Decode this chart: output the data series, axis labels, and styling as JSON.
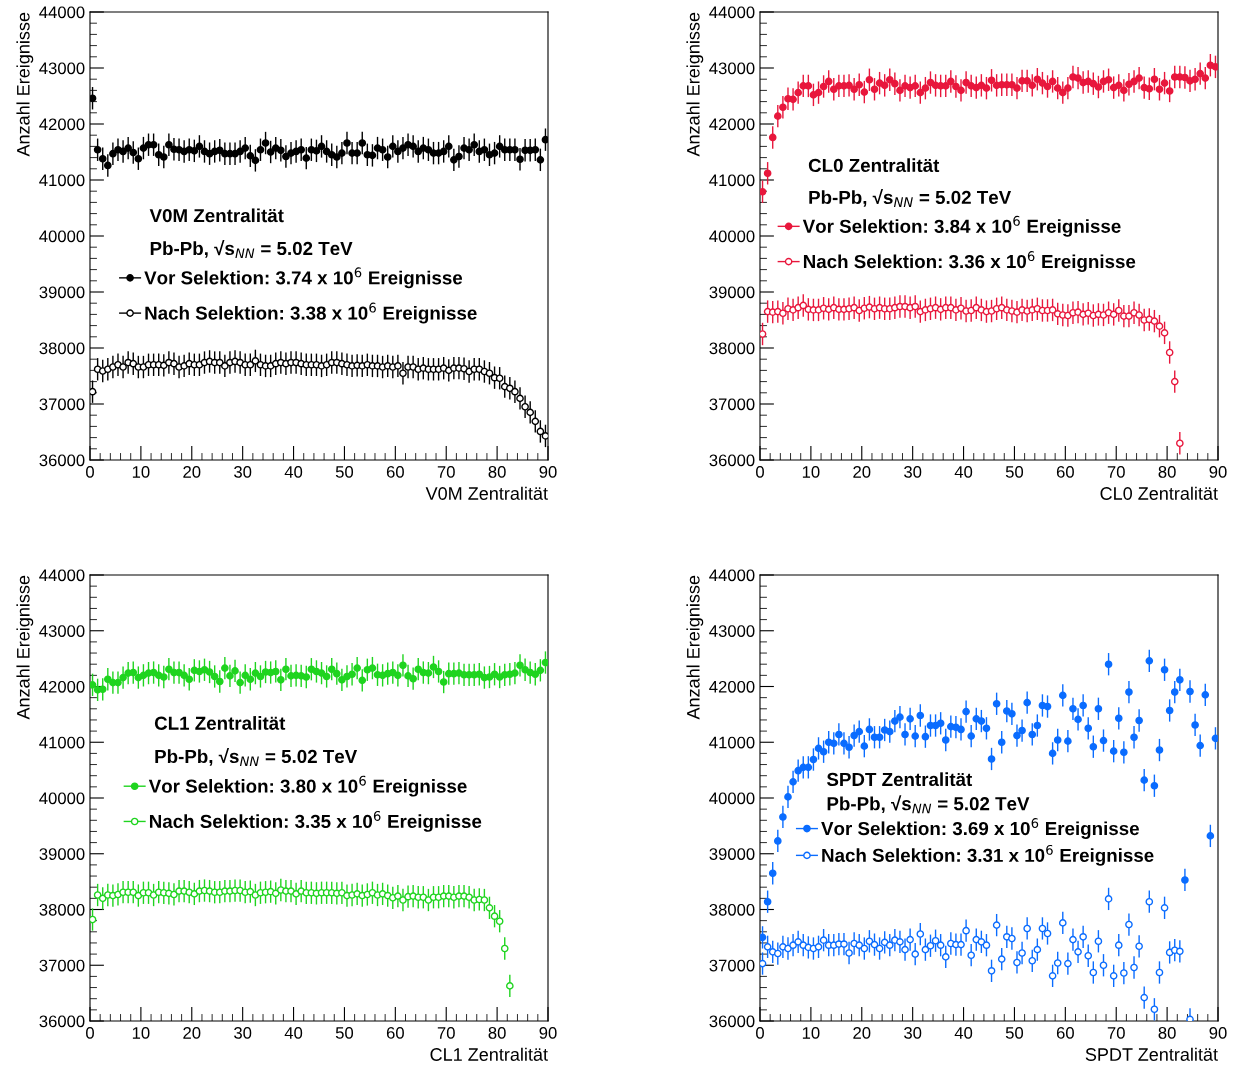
{
  "chart_data": [
    {
      "type": "scatter",
      "xlabel": "V0M Zentralität",
      "ylabel": "Anzahl Ereignisse",
      "legend_title": "V0M Zentralität",
      "annotations": [
        "Pb-Pb, √s$_{NN}$ = 5.02 TeV"
      ],
      "legend": "left",
      "grid": false,
      "marker": "circle",
      "xlim": [
        0,
        90
      ],
      "ylim": [
        36000,
        44000
      ],
      "xticks": [
        0,
        10,
        20,
        30,
        40,
        50,
        60,
        70,
        80,
        90
      ],
      "yticks": [
        36000,
        37000,
        38000,
        39000,
        40000,
        41000,
        42000,
        43000,
        44000
      ],
      "x": [
        0.5,
        1.5,
        2.5,
        3.5,
        4.5,
        5.5,
        6.5,
        7.5,
        8.5,
        9.5,
        10.5,
        11.5,
        12.5,
        13.5,
        14.5,
        15.5,
        16.5,
        17.5,
        18.5,
        19.5,
        20.5,
        21.5,
        22.5,
        23.5,
        24.5,
        25.5,
        26.5,
        27.5,
        28.5,
        29.5,
        30.5,
        31.5,
        32.5,
        33.5,
        34.5,
        35.5,
        36.5,
        37.5,
        38.5,
        39.5,
        40.5,
        41.5,
        42.5,
        43.5,
        44.5,
        45.5,
        46.5,
        47.5,
        48.5,
        49.5,
        50.5,
        51.5,
        52.5,
        53.5,
        54.5,
        55.5,
        56.5,
        57.5,
        58.5,
        59.5,
        60.5,
        61.5,
        62.5,
        63.5,
        64.5,
        65.5,
        66.5,
        67.5,
        68.5,
        69.5,
        70.5,
        71.5,
        72.5,
        73.5,
        74.5,
        75.5,
        76.5,
        77.5,
        78.5,
        79.5,
        80.5,
        81.5,
        82.5,
        83.5,
        84.5,
        85.5,
        86.5,
        87.5,
        88.5,
        89.5
      ],
      "series": [
        {
          "name": "Vor Selektion: 3.74 x 10$^{6}$ Ereignisse",
          "color": "#000000",
          "values": [
            42460,
            41540,
            41380,
            41260,
            41470,
            41540,
            41510,
            41570,
            41490,
            41380,
            41570,
            41630,
            41630,
            41450,
            41410,
            41630,
            41550,
            41540,
            41510,
            41540,
            41520,
            41600,
            41510,
            41470,
            41510,
            41530,
            41470,
            41470,
            41470,
            41510,
            41570,
            41430,
            41350,
            41540,
            41660,
            41500,
            41570,
            41530,
            41420,
            41480,
            41510,
            41540,
            41390,
            41540,
            41520,
            41600,
            41510,
            41450,
            41410,
            41480,
            41660,
            41480,
            41480,
            41660,
            41450,
            41440,
            41570,
            41540,
            41410,
            41600,
            41510,
            41570,
            41630,
            41600,
            41510,
            41570,
            41540,
            41480,
            41480,
            41510,
            41600,
            41360,
            41420,
            41570,
            41540,
            41630,
            41510,
            41540,
            41450,
            41480,
            41600,
            41540,
            41540,
            41540,
            41370,
            41530,
            41530,
            41540,
            41360,
            41720
          ],
          "errors": [
            200,
            200,
            200,
            200,
            200,
            200,
            200,
            200,
            200,
            200,
            200,
            200,
            200,
            200,
            200,
            200,
            200,
            200,
            200,
            200,
            200,
            200,
            200,
            200,
            200,
            200,
            200,
            200,
            200,
            200,
            200,
            200,
            200,
            200,
            200,
            200,
            200,
            200,
            200,
            200,
            200,
            200,
            200,
            200,
            200,
            200,
            200,
            200,
            200,
            200,
            200,
            200,
            200,
            200,
            200,
            200,
            200,
            200,
            200,
            200,
            200,
            200,
            200,
            200,
            200,
            200,
            200,
            200,
            200,
            200,
            200,
            200,
            200,
            200,
            200,
            200,
            200,
            200,
            200,
            200,
            200,
            200,
            200,
            200,
            200,
            200,
            200,
            200,
            200,
            200
          ]
        },
        {
          "name": "Nach Selektion: 3.38 x 10$^{6}$ Ereignisse",
          "color": "#000000",
          "values": [
            37220,
            37620,
            37590,
            37620,
            37660,
            37700,
            37660,
            37740,
            37720,
            37660,
            37660,
            37700,
            37700,
            37700,
            37690,
            37740,
            37720,
            37660,
            37680,
            37720,
            37700,
            37700,
            37740,
            37760,
            37740,
            37740,
            37680,
            37740,
            37760,
            37740,
            37700,
            37700,
            37770,
            37700,
            37680,
            37680,
            37720,
            37740,
            37720,
            37740,
            37740,
            37720,
            37700,
            37700,
            37700,
            37680,
            37700,
            37740,
            37740,
            37720,
            37700,
            37680,
            37690,
            37680,
            37700,
            37680,
            37680,
            37660,
            37680,
            37660,
            37680,
            37550,
            37660,
            37660,
            37620,
            37640,
            37620,
            37620,
            37620,
            37640,
            37600,
            37640,
            37640,
            37630,
            37580,
            37620,
            37620,
            37580,
            37550,
            37470,
            37460,
            37310,
            37280,
            37220,
            37100,
            36950,
            36850,
            36690,
            36510,
            36430
          ],
          "errors": [
            200,
            200,
            200,
            200,
            200,
            200,
            200,
            200,
            200,
            200,
            200,
            200,
            200,
            200,
            200,
            200,
            200,
            200,
            200,
            200,
            200,
            200,
            200,
            200,
            200,
            200,
            200,
            200,
            200,
            200,
            200,
            200,
            200,
            200,
            200,
            200,
            200,
            200,
            200,
            200,
            200,
            200,
            200,
            200,
            200,
            200,
            200,
            200,
            200,
            200,
            200,
            200,
            200,
            200,
            200,
            200,
            200,
            200,
            200,
            200,
            200,
            200,
            200,
            200,
            200,
            200,
            200,
            200,
            200,
            200,
            200,
            200,
            200,
            200,
            200,
            200,
            200,
            200,
            200,
            200,
            200,
            200,
            200,
            200,
            200,
            200,
            200,
            200,
            200,
            200
          ]
        }
      ]
    },
    {
      "type": "scatter",
      "xlabel": "CL0 Zentralität",
      "ylabel": "Anzahl Ereignisse",
      "legend_title": "CL0 Zentralität",
      "annotations": [
        "Pb-Pb, √s$_{NN}$ = 5.02 TeV"
      ],
      "legend": "left",
      "grid": false,
      "marker": "circle",
      "xlim": [
        0,
        90
      ],
      "ylim": [
        36000,
        44000
      ],
      "xticks": [
        0,
        10,
        20,
        30,
        40,
        50,
        60,
        70,
        80,
        90
      ],
      "yticks": [
        36000,
        37000,
        38000,
        39000,
        40000,
        41000,
        42000,
        43000,
        44000
      ],
      "x": [
        0.5,
        1.5,
        2.5,
        3.5,
        4.5,
        5.5,
        6.5,
        7.5,
        8.5,
        9.5,
        10.5,
        11.5,
        12.5,
        13.5,
        14.5,
        15.5,
        16.5,
        17.5,
        18.5,
        19.5,
        20.5,
        21.5,
        22.5,
        23.5,
        24.5,
        25.5,
        26.5,
        27.5,
        28.5,
        29.5,
        30.5,
        31.5,
        32.5,
        33.5,
        34.5,
        35.5,
        36.5,
        37.5,
        38.5,
        39.5,
        40.5,
        41.5,
        42.5,
        43.5,
        44.5,
        45.5,
        46.5,
        47.5,
        48.5,
        49.5,
        50.5,
        51.5,
        52.5,
        53.5,
        54.5,
        55.5,
        56.5,
        57.5,
        58.5,
        59.5,
        60.5,
        61.5,
        62.5,
        63.5,
        64.5,
        65.5,
        66.5,
        67.5,
        68.5,
        69.5,
        70.5,
        71.5,
        72.5,
        73.5,
        74.5,
        75.5,
        76.5,
        77.5,
        78.5,
        79.5,
        80.5,
        81.5,
        82.5,
        83.5,
        84.5,
        85.5,
        86.5,
        87.5,
        88.5,
        89.5
      ],
      "series": [
        {
          "name": "Vor Selektion: 3.84 x 10$^{6}$ Ereignisse",
          "color": "#e8173c",
          "values": [
            40790,
            41120,
            41760,
            42140,
            42300,
            42450,
            42440,
            42560,
            42680,
            42680,
            42520,
            42560,
            42670,
            42760,
            42620,
            42680,
            42680,
            42690,
            42620,
            42700,
            42570,
            42790,
            42620,
            42730,
            42690,
            42790,
            42720,
            42600,
            42680,
            42650,
            42680,
            42560,
            42640,
            42740,
            42690,
            42680,
            42680,
            42760,
            42670,
            42600,
            42740,
            42680,
            42650,
            42690,
            42640,
            42780,
            42690,
            42700,
            42700,
            42700,
            42640,
            42770,
            42770,
            42690,
            42800,
            42730,
            42670,
            42760,
            42640,
            42560,
            42640,
            42840,
            42820,
            42740,
            42760,
            42720,
            42660,
            42760,
            42790,
            42650,
            42690,
            42600,
            42710,
            42760,
            42820,
            42650,
            42630,
            42800,
            42620,
            42730,
            42590,
            42840,
            42840,
            42830,
            42770,
            42800,
            42900,
            42820,
            43050,
            43020
          ],
          "errors": [
            200,
            200,
            200,
            200,
            200,
            200,
            200,
            200,
            200,
            200,
            200,
            200,
            200,
            200,
            200,
            200,
            200,
            200,
            200,
            200,
            200,
            200,
            200,
            200,
            200,
            200,
            200,
            200,
            200,
            200,
            200,
            200,
            200,
            200,
            200,
            200,
            200,
            200,
            200,
            200,
            200,
            200,
            200,
            200,
            200,
            200,
            200,
            200,
            200,
            200,
            200,
            200,
            200,
            200,
            200,
            200,
            200,
            200,
            200,
            200,
            200,
            200,
            200,
            200,
            200,
            200,
            200,
            200,
            200,
            200,
            200,
            200,
            200,
            200,
            200,
            200,
            200,
            200,
            200,
            200,
            200,
            200,
            200,
            200,
            200,
            200,
            200,
            200,
            200,
            200
          ]
        },
        {
          "name": "Nach Selektion: 3.36 x 10$^{6}$ Ereignisse",
          "color": "#e8173c",
          "values": [
            38250,
            38650,
            38640,
            38650,
            38620,
            38700,
            38680,
            38720,
            38760,
            38690,
            38680,
            38680,
            38710,
            38690,
            38720,
            38690,
            38690,
            38700,
            38720,
            38670,
            38710,
            38730,
            38700,
            38720,
            38700,
            38700,
            38720,
            38740,
            38740,
            38720,
            38740,
            38650,
            38680,
            38700,
            38720,
            38690,
            38720,
            38720,
            38680,
            38710,
            38660,
            38670,
            38720,
            38680,
            38650,
            38660,
            38700,
            38720,
            38680,
            38660,
            38640,
            38680,
            38660,
            38680,
            38700,
            38670,
            38670,
            38680,
            38610,
            38590,
            38580,
            38630,
            38640,
            38600,
            38620,
            38580,
            38600,
            38590,
            38630,
            38600,
            38670,
            38570,
            38570,
            38630,
            38590,
            38500,
            38510,
            38480,
            38390,
            38270,
            37920,
            37400,
            36300,
            null,
            null,
            null,
            null,
            null,
            null,
            null
          ],
          "errors": [
            200,
            200,
            200,
            200,
            200,
            200,
            200,
            200,
            200,
            200,
            200,
            200,
            200,
            200,
            200,
            200,
            200,
            200,
            200,
            200,
            200,
            200,
            200,
            200,
            200,
            200,
            200,
            200,
            200,
            200,
            200,
            200,
            200,
            200,
            200,
            200,
            200,
            200,
            200,
            200,
            200,
            200,
            200,
            200,
            200,
            200,
            200,
            200,
            200,
            200,
            200,
            200,
            200,
            200,
            200,
            200,
            200,
            200,
            200,
            200,
            200,
            200,
            200,
            200,
            200,
            200,
            200,
            200,
            200,
            200,
            200,
            200,
            200,
            200,
            200,
            200,
            200,
            200,
            200,
            200,
            200,
            200,
            200,
            null,
            null,
            null,
            null,
            null,
            null,
            null
          ]
        }
      ]
    },
    {
      "type": "scatter",
      "xlabel": "CL1 Zentralität",
      "ylabel": "Anzahl Ereignisse",
      "legend_title": "CL1 Zentralität",
      "annotations": [
        "Pb-Pb, √s$_{NN}$ = 5.02 TeV"
      ],
      "legend": "left",
      "grid": false,
      "marker": "circle",
      "xlim": [
        0,
        90
      ],
      "ylim": [
        36000,
        44000
      ],
      "xticks": [
        0,
        10,
        20,
        30,
        40,
        50,
        60,
        70,
        80,
        90
      ],
      "yticks": [
        36000,
        37000,
        38000,
        39000,
        40000,
        41000,
        42000,
        43000,
        44000
      ],
      "x": [
        0.5,
        1.5,
        2.5,
        3.5,
        4.5,
        5.5,
        6.5,
        7.5,
        8.5,
        9.5,
        10.5,
        11.5,
        12.5,
        13.5,
        14.5,
        15.5,
        16.5,
        17.5,
        18.5,
        19.5,
        20.5,
        21.5,
        22.5,
        23.5,
        24.5,
        25.5,
        26.5,
        27.5,
        28.5,
        29.5,
        30.5,
        31.5,
        32.5,
        33.5,
        34.5,
        35.5,
        36.5,
        37.5,
        38.5,
        39.5,
        40.5,
        41.5,
        42.5,
        43.5,
        44.5,
        45.5,
        46.5,
        47.5,
        48.5,
        49.5,
        50.5,
        51.5,
        52.5,
        53.5,
        54.5,
        55.5,
        56.5,
        57.5,
        58.5,
        59.5,
        60.5,
        61.5,
        62.5,
        63.5,
        64.5,
        65.5,
        66.5,
        67.5,
        68.5,
        69.5,
        70.5,
        71.5,
        72.5,
        73.5,
        74.5,
        75.5,
        76.5,
        77.5,
        78.5,
        79.5,
        80.5,
        81.5,
        82.5,
        83.5,
        84.5,
        85.5,
        86.5,
        87.5,
        88.5,
        89.5
      ],
      "series": [
        {
          "name": "Vor Selektion: 3.80 x 10$^{6}$ Ereignisse",
          "color": "#1fd41f",
          "values": [
            42030,
            41940,
            41950,
            42130,
            42070,
            42070,
            42160,
            42240,
            42250,
            42160,
            42200,
            42240,
            42250,
            42200,
            42170,
            42310,
            42250,
            42250,
            42200,
            42130,
            42290,
            42270,
            42300,
            42260,
            42180,
            42090,
            42330,
            42190,
            42280,
            42070,
            42200,
            42130,
            42240,
            42180,
            42260,
            42250,
            42270,
            42120,
            42310,
            42190,
            42200,
            42190,
            42170,
            42310,
            42270,
            42240,
            42180,
            42310,
            42230,
            42120,
            42180,
            42220,
            42330,
            42110,
            42300,
            42330,
            42210,
            42200,
            42230,
            42250,
            42200,
            42380,
            42190,
            42140,
            42310,
            42250,
            42240,
            42350,
            42270,
            42080,
            42230,
            42230,
            42240,
            42210,
            42210,
            42210,
            42220,
            42160,
            42170,
            42220,
            42170,
            42210,
            42220,
            42240,
            42380,
            42300,
            42250,
            42220,
            42290,
            42430
          ],
          "errors": [
            200,
            200,
            200,
            200,
            200,
            200,
            200,
            200,
            200,
            200,
            200,
            200,
            200,
            200,
            200,
            200,
            200,
            200,
            200,
            200,
            200,
            200,
            200,
            200,
            200,
            200,
            200,
            200,
            200,
            200,
            200,
            200,
            200,
            200,
            200,
            200,
            200,
            200,
            200,
            200,
            200,
            200,
            200,
            200,
            200,
            200,
            200,
            200,
            200,
            200,
            200,
            200,
            200,
            200,
            200,
            200,
            200,
            200,
            200,
            200,
            200,
            200,
            200,
            200,
            200,
            200,
            200,
            200,
            200,
            200,
            200,
            200,
            200,
            200,
            200,
            200,
            200,
            200,
            200,
            200,
            200,
            200,
            200,
            200,
            200,
            200,
            200,
            200,
            200,
            200
          ]
        },
        {
          "name": "Nach Selektion: 3.35 x 10$^{6}$ Ereignisse",
          "color": "#1fd41f",
          "values": [
            37820,
            38260,
            38200,
            38260,
            38250,
            38270,
            38310,
            38310,
            38310,
            38250,
            38300,
            38300,
            38260,
            38310,
            38300,
            38290,
            38270,
            38330,
            38330,
            38310,
            38280,
            38330,
            38340,
            38330,
            38310,
            38310,
            38330,
            38330,
            38340,
            38340,
            38310,
            38320,
            38260,
            38300,
            38310,
            38320,
            38290,
            38350,
            38330,
            38330,
            38280,
            38330,
            38300,
            38300,
            38290,
            38300,
            38300,
            38300,
            38290,
            38300,
            38250,
            38260,
            38280,
            38250,
            38270,
            38300,
            38260,
            38280,
            38250,
            38210,
            38240,
            38170,
            38230,
            38240,
            38220,
            38220,
            38170,
            38220,
            38220,
            38240,
            38240,
            38220,
            38240,
            38240,
            38220,
            38170,
            38180,
            38170,
            38030,
            37880,
            37790,
            37300,
            36630,
            null,
            null,
            null,
            null,
            null,
            null,
            null
          ],
          "errors": [
            200,
            200,
            200,
            200,
            200,
            200,
            200,
            200,
            200,
            200,
            200,
            200,
            200,
            200,
            200,
            200,
            200,
            200,
            200,
            200,
            200,
            200,
            200,
            200,
            200,
            200,
            200,
            200,
            200,
            200,
            200,
            200,
            200,
            200,
            200,
            200,
            200,
            200,
            200,
            200,
            200,
            200,
            200,
            200,
            200,
            200,
            200,
            200,
            200,
            200,
            200,
            200,
            200,
            200,
            200,
            200,
            200,
            200,
            200,
            200,
            200,
            200,
            200,
            200,
            200,
            200,
            200,
            200,
            200,
            200,
            200,
            200,
            200,
            200,
            200,
            200,
            200,
            200,
            200,
            200,
            200,
            200,
            200,
            null,
            null,
            null,
            null,
            null,
            null,
            null
          ]
        }
      ]
    },
    {
      "type": "scatter",
      "xlabel": "SPDT Zentralität",
      "ylabel": "Anzahl Ereignisse",
      "legend_title": "SPDT Zentralität",
      "annotations": [
        "Pb-Pb, √s$_{NN}$ = 5.02 TeV"
      ],
      "legend": "left",
      "grid": false,
      "marker": "circle",
      "xlim": [
        0,
        90
      ],
      "ylim": [
        36000,
        44000
      ],
      "xticks": [
        0,
        10,
        20,
        30,
        40,
        50,
        60,
        70,
        80,
        90
      ],
      "yticks": [
        36000,
        37000,
        38000,
        39000,
        40000,
        41000,
        42000,
        43000,
        44000
      ],
      "x": [
        0.5,
        1.5,
        2.5,
        3.5,
        4.5,
        5.5,
        6.5,
        7.5,
        8.5,
        9.5,
        10.5,
        11.5,
        12.5,
        13.5,
        14.5,
        15.5,
        16.5,
        17.5,
        18.5,
        19.5,
        20.5,
        21.5,
        22.5,
        23.5,
        24.5,
        25.5,
        26.5,
        27.5,
        28.5,
        29.5,
        30.5,
        31.5,
        32.5,
        33.5,
        34.5,
        35.5,
        36.5,
        37.5,
        38.5,
        39.5,
        40.5,
        41.5,
        42.5,
        43.5,
        44.5,
        45.5,
        46.5,
        47.5,
        48.5,
        49.5,
        50.5,
        51.5,
        52.5,
        53.5,
        54.5,
        55.5,
        56.5,
        57.5,
        58.5,
        59.5,
        60.5,
        61.5,
        62.5,
        63.5,
        64.5,
        65.5,
        66.5,
        67.5,
        68.5,
        69.5,
        70.5,
        71.5,
        72.5,
        73.5,
        74.5,
        75.5,
        76.5,
        77.5,
        78.5,
        79.5,
        80.5,
        81.5,
        82.5,
        83.5,
        84.5,
        85.5,
        86.5,
        87.5,
        88.5,
        89.5
      ],
      "series": [
        {
          "name": "Vor Selektion: 3.69 x 10$^{6}$ Ereignisse",
          "color": "#0a6cff",
          "values": [
            37500,
            38140,
            38650,
            39230,
            39660,
            40020,
            40290,
            40490,
            40550,
            40550,
            40690,
            40890,
            40830,
            41000,
            40980,
            41140,
            40980,
            40910,
            41120,
            41190,
            40930,
            41230,
            41090,
            41090,
            41220,
            41190,
            41380,
            41450,
            41140,
            41420,
            41110,
            41480,
            41100,
            41300,
            41300,
            41340,
            41040,
            41280,
            41270,
            41230,
            41550,
            41110,
            41420,
            41380,
            41250,
            40700,
            41690,
            41000,
            41560,
            41510,
            41120,
            41210,
            41710,
            41140,
            41300,
            41660,
            41640,
            40800,
            41040,
            41840,
            41020,
            41600,
            41410,
            41660,
            41250,
            40920,
            41600,
            41030,
            42400,
            40840,
            41430,
            40820,
            41900,
            41090,
            41390,
            40320,
            42460,
            40220,
            40860,
            42300,
            41570,
            41900,
            42120,
            38530,
            41910,
            41310,
            40940,
            41850,
            39320,
            41070
          ],
          "errors": [
            200,
            200,
            200,
            200,
            200,
            200,
            200,
            200,
            200,
            200,
            200,
            200,
            200,
            200,
            200,
            200,
            200,
            200,
            200,
            200,
            200,
            200,
            200,
            200,
            200,
            200,
            200,
            200,
            200,
            200,
            200,
            200,
            200,
            200,
            200,
            200,
            200,
            200,
            200,
            200,
            200,
            200,
            200,
            200,
            200,
            200,
            200,
            200,
            200,
            200,
            200,
            200,
            200,
            200,
            200,
            200,
            200,
            200,
            200,
            200,
            200,
            200,
            200,
            200,
            200,
            200,
            200,
            200,
            200,
            200,
            200,
            200,
            200,
            200,
            200,
            200,
            200,
            200,
            200,
            200,
            200,
            200,
            200,
            200,
            200,
            200,
            200,
            200,
            200,
            200
          ]
        },
        {
          "name": "Nach Selektion: 3.31 x 10$^{6}$ Ereignisse",
          "color": "#0a6cff",
          "values": [
            37030,
            37330,
            37240,
            37210,
            37330,
            37300,
            37360,
            37420,
            37360,
            37320,
            37300,
            37330,
            37450,
            37360,
            37360,
            37380,
            37380,
            37220,
            37390,
            37360,
            37300,
            37430,
            37370,
            37300,
            37410,
            37360,
            37450,
            37420,
            37280,
            37460,
            37200,
            37560,
            37280,
            37350,
            37440,
            37360,
            37150,
            37390,
            37370,
            37370,
            37620,
            37180,
            37460,
            37420,
            37360,
            36900,
            37720,
            37110,
            37510,
            37480,
            37050,
            37220,
            37660,
            37080,
            37280,
            37660,
            37570,
            36810,
            37040,
            37760,
            37030,
            37460,
            37240,
            37510,
            37170,
            36870,
            37430,
            37000,
            38190,
            36810,
            37360,
            36860,
            37730,
            36960,
            37340,
            36420,
            38140,
            36210,
            36870,
            38030,
            37230,
            37270,
            37250,
            null,
            36030,
            null,
            null,
            null,
            null,
            null
          ],
          "errors": [
            200,
            200,
            200,
            200,
            200,
            200,
            200,
            200,
            200,
            200,
            200,
            200,
            200,
            200,
            200,
            200,
            200,
            200,
            200,
            200,
            200,
            200,
            200,
            200,
            200,
            200,
            200,
            200,
            200,
            200,
            200,
            200,
            200,
            200,
            200,
            200,
            200,
            200,
            200,
            200,
            200,
            200,
            200,
            200,
            200,
            200,
            200,
            200,
            200,
            200,
            200,
            200,
            200,
            200,
            200,
            200,
            200,
            200,
            200,
            200,
            200,
            200,
            200,
            200,
            200,
            200,
            200,
            200,
            200,
            200,
            200,
            200,
            200,
            200,
            200,
            200,
            200,
            200,
            200,
            200,
            200,
            200,
            200,
            null,
            200,
            null,
            null,
            null,
            null,
            null
          ]
        }
      ]
    }
  ]
}
